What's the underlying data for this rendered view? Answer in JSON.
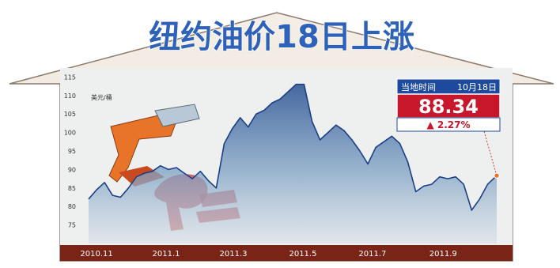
{
  "chart_data": {
    "type": "area",
    "title": "纽约油价18日上涨",
    "subtitle": "",
    "ylabel": "美元/桶",
    "xlabel": "",
    "ylim": [
      70,
      117
    ],
    "y_ticks": [
      75,
      80,
      85,
      90,
      95,
      100,
      105,
      110,
      115
    ],
    "x_ticks": [
      "2010.11",
      "2011.1",
      "2011.3",
      "2011.5",
      "2011.7",
      "2011.9"
    ],
    "x_range": [
      "2010-10-25",
      "2011-10-18"
    ],
    "grid": false,
    "legend": "none",
    "callout": {
      "label": "当地时间",
      "date": "10月18日",
      "price": "88.34",
      "change": "▲ 2.27%"
    },
    "series": [
      {
        "x": [
          "2010-10-25",
          "2010-11-01",
          "2010-11-08",
          "2010-11-15",
          "2010-11-22",
          "2010-11-29",
          "2010-12-06",
          "2010-12-13",
          "2010-12-20",
          "2010-12-27",
          "2011-01-03",
          "2011-01-10",
          "2011-01-17",
          "2011-01-24",
          "2011-01-31",
          "2011-02-07",
          "2011-02-14",
          "2011-02-21",
          "2011-02-28",
          "2011-03-07",
          "2011-03-14",
          "2011-03-21",
          "2011-03-28",
          "2011-04-04",
          "2011-04-11",
          "2011-04-18",
          "2011-04-25",
          "2011-05-02",
          "2011-05-09",
          "2011-05-16",
          "2011-05-23",
          "2011-05-30",
          "2011-06-06",
          "2011-06-13",
          "2011-06-20",
          "2011-06-27",
          "2011-07-04",
          "2011-07-11",
          "2011-07-18",
          "2011-07-25",
          "2011-08-01",
          "2011-08-08",
          "2011-08-15",
          "2011-08-22",
          "2011-08-29",
          "2011-09-05",
          "2011-09-12",
          "2011-09-19",
          "2011-09-26",
          "2011-10-03",
          "2011-10-10",
          "2011-10-18"
        ],
        "values": [
          82.0,
          84.5,
          86.5,
          83.0,
          82.5,
          85.0,
          88.0,
          89.0,
          89.5,
          91.0,
          90.0,
          90.5,
          89.0,
          87.5,
          89.5,
          87.0,
          85.0,
          97.0,
          101.0,
          104.0,
          101.5,
          105.0,
          106.0,
          108.0,
          109.0,
          111.0,
          113.0,
          113.0,
          103.0,
          98.0,
          100.0,
          102.0,
          100.5,
          98.0,
          95.0,
          91.5,
          96.0,
          97.5,
          99.0,
          97.0,
          92.0,
          84.0,
          85.5,
          86.0,
          88.0,
          87.5,
          88.0,
          86.0,
          79.0,
          82.0,
          86.0,
          88.34
        ]
      }
    ]
  }
}
